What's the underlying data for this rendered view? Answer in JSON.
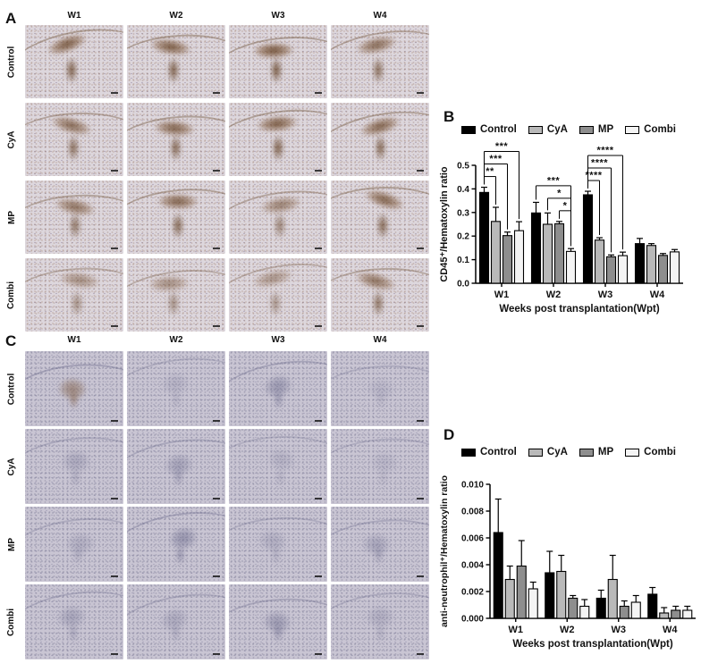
{
  "panels": {
    "A": {
      "letter": "A",
      "col_headers": [
        "W1",
        "W2",
        "W3",
        "W4"
      ],
      "row_labels": [
        "Control",
        "CyA",
        "MP",
        "Combi"
      ]
    },
    "B": {
      "letter": "B"
    },
    "C": {
      "letter": "C",
      "col_headers": [
        "W1",
        "W2",
        "W3",
        "W4"
      ],
      "row_labels": [
        "Control",
        "CyA",
        "MP",
        "Combi"
      ]
    },
    "D": {
      "letter": "D"
    }
  },
  "chart_data": [
    {
      "id": "B",
      "type": "bar",
      "categories": [
        "W1",
        "W2",
        "W3",
        "W4"
      ],
      "series": [
        {
          "name": "Control",
          "color": "#000000",
          "values": [
            0.385,
            0.298,
            0.375,
            0.168
          ],
          "errors": [
            0.022,
            0.045,
            0.015,
            0.022
          ]
        },
        {
          "name": "CyA",
          "color": "#b9b9b9",
          "values": [
            0.262,
            0.25,
            0.183,
            0.16
          ],
          "errors": [
            0.06,
            0.048,
            0.01,
            0.008
          ]
        },
        {
          "name": "MP",
          "color": "#8e8e8e",
          "values": [
            0.202,
            0.252,
            0.112,
            0.118
          ],
          "errors": [
            0.015,
            0.01,
            0.008,
            0.008
          ]
        },
        {
          "name": "Combi",
          "color": "#f4f4f4",
          "values": [
            0.223,
            0.135,
            0.117,
            0.133
          ],
          "errors": [
            0.038,
            0.012,
            0.015,
            0.01
          ]
        }
      ],
      "title": "",
      "ylabel": "CD45⁺/Hematoxylin ratio",
      "xlabel": "Weeks post transplantation(Wpt)",
      "ylim": [
        0,
        0.5
      ],
      "ytick_step": 0.1,
      "ytick_decimals": 1,
      "grid": false,
      "legend_position": "top",
      "significance": [
        {
          "group": 0,
          "from": 0,
          "to": 1,
          "label": "**"
        },
        {
          "group": 0,
          "from": 0,
          "to": 2,
          "label": "***"
        },
        {
          "group": 0,
          "from": 0,
          "to": 3,
          "label": "***"
        },
        {
          "group": 1,
          "from": 2,
          "to": 3,
          "label": "*"
        },
        {
          "group": 1,
          "from": 1,
          "to": 3,
          "label": "*"
        },
        {
          "group": 1,
          "from": 0,
          "to": 3,
          "label": "***"
        },
        {
          "group": 2,
          "from": 0,
          "to": 1,
          "label": "****"
        },
        {
          "group": 2,
          "from": 0,
          "to": 2,
          "label": "****"
        },
        {
          "group": 2,
          "from": 0,
          "to": 3,
          "label": "****"
        }
      ]
    },
    {
      "id": "D",
      "type": "bar",
      "categories": [
        "W1",
        "W2",
        "W3",
        "W4"
      ],
      "series": [
        {
          "name": "Control",
          "color": "#000000",
          "values": [
            0.0064,
            0.0034,
            0.0015,
            0.0018
          ],
          "errors": [
            0.0025,
            0.0016,
            0.0006,
            0.0005
          ]
        },
        {
          "name": "CyA",
          "color": "#b9b9b9",
          "values": [
            0.0029,
            0.0035,
            0.0029,
            0.0004
          ],
          "errors": [
            0.001,
            0.0012,
            0.0018,
            0.0004
          ]
        },
        {
          "name": "MP",
          "color": "#8e8e8e",
          "values": [
            0.0039,
            0.0015,
            0.0009,
            0.0006
          ],
          "errors": [
            0.0019,
            0.0002,
            0.0004,
            0.0003
          ]
        },
        {
          "name": "Combi",
          "color": "#f4f4f4",
          "values": [
            0.0022,
            0.0009,
            0.0012,
            0.0006
          ],
          "errors": [
            0.0005,
            0.0005,
            0.0005,
            0.0003
          ]
        }
      ],
      "title": "",
      "ylabel": "anti-neutrophil⁺/Hematoxylin ratio",
      "xlabel": "Weeks post transplantation(Wpt)",
      "ylim": [
        0,
        0.01
      ],
      "ytick_step": 0.002,
      "ytick_decimals": 3,
      "grid": false,
      "legend_position": "top",
      "significance": []
    }
  ]
}
